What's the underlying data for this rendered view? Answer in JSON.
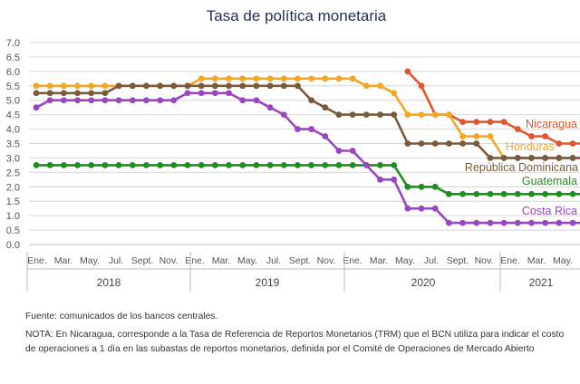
{
  "chart_data": {
    "type": "line",
    "title": "Tasa de política monetaria",
    "ylim": [
      0,
      7
    ],
    "yticks": [
      "0.0",
      "0.5",
      "1.0",
      "1.5",
      "2.0",
      "2.5",
      "3.0",
      "3.5",
      "4.0",
      "4.5",
      "5.0",
      "5.5",
      "6.0",
      "6.5",
      "7.0"
    ],
    "grid": true,
    "x_month_labels": [
      "Ene.",
      "Mar.",
      "May.",
      "Jul.",
      "Sept.",
      "Nov.",
      "Ene.",
      "Mar.",
      "May.",
      "Jul.",
      "Sept.",
      "Nov.",
      "Ene.",
      "Mar.",
      "May.",
      "Jul.",
      "Sept.",
      "Nov.",
      "Ene.",
      "Mar.",
      "May."
    ],
    "x_years": [
      "2018",
      "2019",
      "2020",
      "2021"
    ],
    "series": [
      {
        "name": "Nicaragua",
        "color": "#e0562b",
        "start": 27,
        "values": [
          6.0,
          5.5,
          4.5,
          4.5,
          4.25,
          4.25,
          4.25,
          4.25,
          4.0,
          3.75,
          3.75,
          3.5,
          3.5,
          3.5,
          3.5
        ]
      },
      {
        "name": "Honduras",
        "color": "#f5a623",
        "start": 0,
        "values": [
          5.5,
          5.5,
          5.5,
          5.5,
          5.5,
          5.5,
          5.5,
          5.5,
          5.5,
          5.5,
          5.5,
          5.5,
          5.75,
          5.75,
          5.75,
          5.75,
          5.75,
          5.75,
          5.75,
          5.75,
          5.75,
          5.75,
          5.75,
          5.75,
          5.5,
          5.5,
          5.25,
          4.5,
          4.5,
          4.5,
          4.5,
          3.75,
          3.75,
          3.75,
          3.0,
          3.0,
          3.0,
          3.0,
          3.0,
          3.0,
          3.0
        ]
      },
      {
        "name": "República Dominicana",
        "color": "#7a5a3a",
        "start": 0,
        "values": [
          5.25,
          5.25,
          5.25,
          5.25,
          5.25,
          5.25,
          5.5,
          5.5,
          5.5,
          5.5,
          5.5,
          5.5,
          5.5,
          5.5,
          5.5,
          5.5,
          5.5,
          5.5,
          5.5,
          5.5,
          5.0,
          4.75,
          4.5,
          4.5,
          4.5,
          4.5,
          4.5,
          3.5,
          3.5,
          3.5,
          3.5,
          3.5,
          3.5,
          3.0,
          3.0,
          3.0,
          3.0,
          3.0,
          3.0,
          3.0,
          3.0
        ]
      },
      {
        "name": "Guatemala",
        "color": "#1e8f1e",
        "start": 0,
        "values": [
          2.75,
          2.75,
          2.75,
          2.75,
          2.75,
          2.75,
          2.75,
          2.75,
          2.75,
          2.75,
          2.75,
          2.75,
          2.75,
          2.75,
          2.75,
          2.75,
          2.75,
          2.75,
          2.75,
          2.75,
          2.75,
          2.75,
          2.75,
          2.75,
          2.75,
          2.75,
          2.75,
          2.0,
          2.0,
          2.0,
          1.75,
          1.75,
          1.75,
          1.75,
          1.75,
          1.75,
          1.75,
          1.75,
          1.75,
          1.75,
          1.75
        ]
      },
      {
        "name": "Costa Rica",
        "color": "#9b45c2",
        "start": 0,
        "values": [
          4.75,
          5.0,
          5.0,
          5.0,
          5.0,
          5.0,
          5.0,
          5.0,
          5.0,
          5.0,
          5.0,
          5.25,
          5.25,
          5.25,
          5.25,
          5.0,
          5.0,
          4.75,
          4.5,
          4.0,
          4.0,
          3.75,
          3.25,
          3.25,
          2.75,
          2.25,
          2.25,
          1.25,
          1.25,
          1.25,
          0.75,
          0.75,
          0.75,
          0.75,
          0.75,
          0.75,
          0.75,
          0.75,
          0.75,
          0.75,
          0.75
        ]
      }
    ]
  },
  "footer": {
    "source": "Fuente: comunicados de los bancos centrales.",
    "note": "NOTA: En Nicaragua, corresponde a la Tasa de Referencia de Reportos Monetarios (TRM) que el BCN utiliza para indicar el costo de operaciones a 1 día en las subastas de reportos monetarios, definida por el Comité de Operaciones de Mercado Abierto"
  }
}
